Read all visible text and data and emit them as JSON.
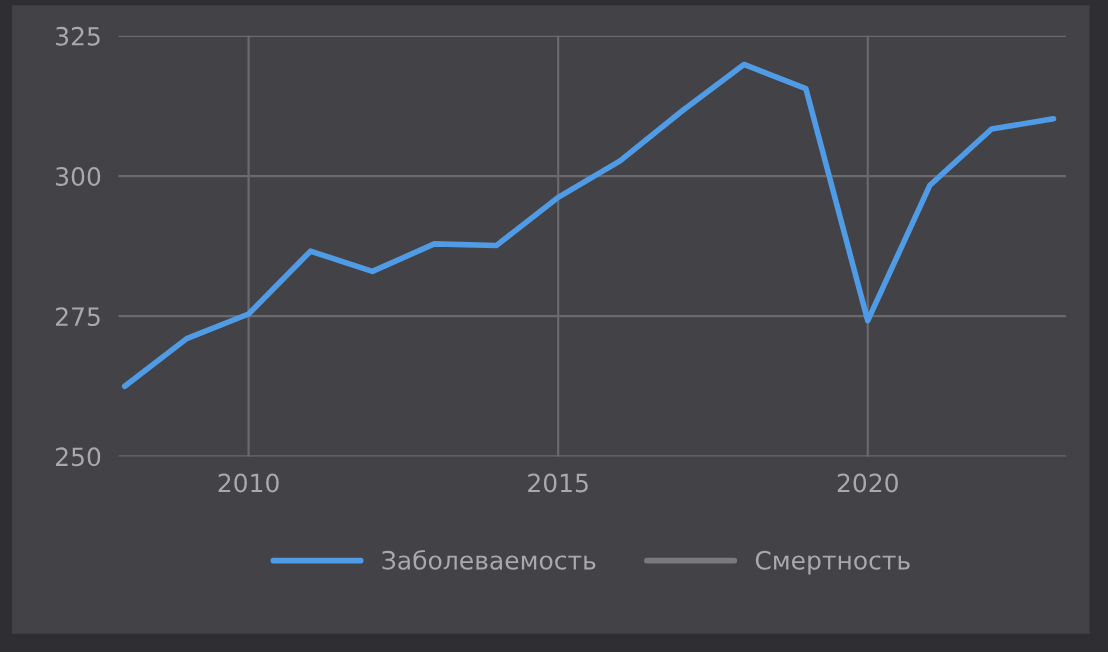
{
  "chart_data": {
    "type": "line",
    "x": [
      2008,
      2009,
      2010,
      2011,
      2012,
      2013,
      2014,
      2015,
      2016,
      2017,
      2018,
      2019,
      2020,
      2021,
      2022,
      2023
    ],
    "series": [
      {
        "name": "Заболеваемость",
        "color": "#4f9be6",
        "values": [
          262.5,
          271,
          275.4,
          286.6,
          283,
          287.9,
          287.6,
          296.2,
          302.7,
          311.6,
          319.9,
          315.6,
          274.2,
          298.3,
          308.4,
          310.2
        ]
      },
      {
        "name": "Смертность",
        "color": "#7a7a7c",
        "values": [
          null,
          null,
          null,
          null,
          null,
          null,
          null,
          null,
          null,
          null,
          null,
          null,
          null,
          null,
          null,
          null
        ]
      }
    ],
    "xlim": [
      2007.9,
      2023.2
    ],
    "xticks": [
      2010,
      2015,
      2020
    ],
    "ylim": [
      250,
      325
    ],
    "yticks": [
      250,
      275,
      300,
      325
    ],
    "grid": true,
    "legend": "bottom",
    "marker": "none",
    "line_style": "solid"
  }
}
